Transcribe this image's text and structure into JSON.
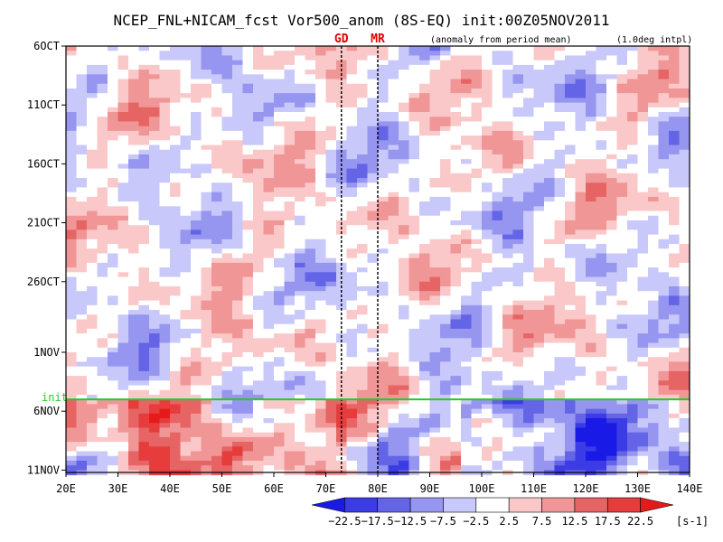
{
  "chart_data": {
    "type": "heatmap",
    "title": "NCEP_FNL+NICAM_fcst Vor500_anom (8S-EQ) init:00Z05NOV2011",
    "subtitle_left": "(anomaly from period mean)",
    "subtitle_right": "(1.0deg intpl)",
    "x_ticks": [
      "20E",
      "30E",
      "40E",
      "50E",
      "60E",
      "70E",
      "80E",
      "90E",
      "100E",
      "110E",
      "120E",
      "130E",
      "140E"
    ],
    "x_range": [
      20,
      140
    ],
    "y_ticks": [
      "6OCT",
      "11OCT",
      "16OCT",
      "21OCT",
      "26OCT",
      "1NOV",
      "6NOV",
      "11NOV"
    ],
    "y_tick_days": [
      0,
      5,
      10,
      15,
      20,
      26,
      31,
      36
    ],
    "y_range_days": [
      0,
      36.2
    ],
    "markers": [
      {
        "label": "GD",
        "lon": 73
      },
      {
        "label": "MR",
        "lon": 80
      }
    ],
    "init_line": {
      "label": "init",
      "day": 30.0,
      "color": "#22cc22"
    },
    "colorbar": {
      "levels": [
        -22.5,
        -17.5,
        -12.5,
        -7.5,
        -2.5,
        2.5,
        7.5,
        12.5,
        17.5,
        22.5
      ],
      "labels": [
        "−22.5",
        "−17.5",
        "−12.5",
        "−7.5",
        "−2.5",
        "2.5",
        "7.5",
        "12.5",
        "17.5",
        "22.5"
      ],
      "unit": "[s-1]",
      "colors": [
        "#1a1ae6",
        "#3c3ce6",
        "#6464e6",
        "#9696f0",
        "#c8c8fa",
        "#ffffff",
        "#fac8c8",
        "#f09696",
        "#e66464",
        "#e63c3c",
        "#e61a1a"
      ]
    }
  }
}
